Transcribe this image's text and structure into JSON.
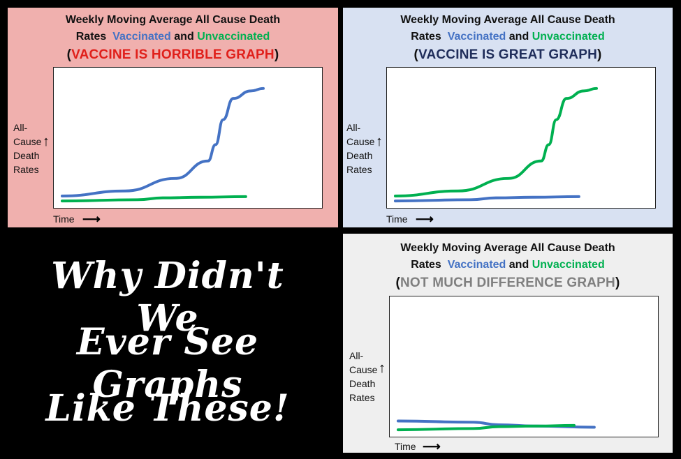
{
  "chart_data": [
    {
      "type": "line",
      "title_line1": "Weekly Moving Average All Cause Death",
      "title_rates": "Rates",
      "title_and": "and",
      "subtitle_open": "(",
      "subtitle": "VACCINE IS HORRIBLE GRAPH",
      "subtitle_close": ")",
      "subtitle_color": "#E0201B",
      "ylabel_lines": [
        "All-",
        "Cause",
        "Death",
        "Rates"
      ],
      "xlabel": "Time",
      "background": "#F0B0AE",
      "series": [
        {
          "name": "Vaccinated",
          "color": "#4472C4",
          "x": [
            0,
            0.25,
            0.45,
            0.58,
            0.61,
            0.64,
            0.68,
            0.75,
            0.8
          ],
          "y": [
            0.04,
            0.08,
            0.18,
            0.32,
            0.45,
            0.65,
            0.82,
            0.88,
            0.9
          ]
        },
        {
          "name": "Unvaccinated",
          "color": "#00B050",
          "x": [
            0,
            0.3,
            0.4,
            0.55,
            0.73
          ],
          "y": [
            0.0,
            0.01,
            0.025,
            0.03,
            0.035
          ]
        }
      ]
    },
    {
      "type": "line",
      "title_line1": "Weekly Moving Average All Cause Death",
      "title_rates": "Rates",
      "title_and": "and",
      "subtitle_open": "(",
      "subtitle": "VACCINE IS GREAT GRAPH",
      "subtitle_close": ")",
      "subtitle_color": "#1F2D5A",
      "ylabel_lines": [
        "All-",
        "Cause",
        "Death",
        "Rates"
      ],
      "xlabel": "Time",
      "background": "#D8E1F2",
      "series": [
        {
          "name": "Unvaccinated",
          "color": "#00B050",
          "x": [
            0,
            0.25,
            0.45,
            0.58,
            0.61,
            0.64,
            0.68,
            0.75,
            0.8
          ],
          "y": [
            0.04,
            0.08,
            0.18,
            0.32,
            0.45,
            0.65,
            0.82,
            0.88,
            0.9
          ]
        },
        {
          "name": "Vaccinated",
          "color": "#4472C4",
          "x": [
            0,
            0.3,
            0.4,
            0.55,
            0.73
          ],
          "y": [
            0.0,
            0.01,
            0.025,
            0.03,
            0.035
          ]
        }
      ]
    },
    {
      "type": "line",
      "title_line1": "Weekly Moving Average All Cause Death",
      "title_rates": "Rates",
      "title_and": "and",
      "subtitle_open": "(",
      "subtitle": "NOT MUCH DIFFERENCE GRAPH",
      "subtitle_close": ")",
      "subtitle_color": "#7F7F7F",
      "ylabel_lines": [
        "All-",
        "Cause",
        "Death",
        "Rates"
      ],
      "xlabel": "Time",
      "background": "#EFEFEF",
      "series": [
        {
          "name": "Vaccinated",
          "color": "#4472C4",
          "x": [
            0,
            0.3,
            0.4,
            0.55,
            0.78
          ],
          "y": [
            0.07,
            0.06,
            0.04,
            0.03,
            0.02
          ]
        },
        {
          "name": "Unvaccinated",
          "color": "#00B050",
          "x": [
            0,
            0.3,
            0.4,
            0.55,
            0.7
          ],
          "y": [
            0.0,
            0.01,
            0.025,
            0.03,
            0.035
          ]
        }
      ]
    }
  ],
  "caption": [
    "Why Didn't We",
    "Ever See Graphs",
    "Like These!"
  ]
}
